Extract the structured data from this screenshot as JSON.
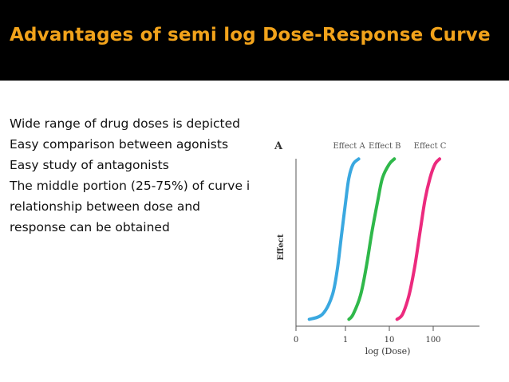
{
  "slide": {
    "title": "Advantages of semi log Dose-Response Curve",
    "bullets": [
      "Wide range of drug doses is depicted",
      "Easy comparison between agonists",
      "Easy study of antagonists",
      "The middle portion (25-75%) of curve i",
      "relationship between dose and",
      "response can be obtained"
    ],
    "colors": {
      "title_bar": "#000000",
      "title_text": "#f2a31b"
    }
  },
  "chart_data": {
    "type": "line",
    "panel_label": "A",
    "xlabel": "log (Dose)",
    "ylabel": "Effect",
    "x_scale": "log",
    "x_ticks": [
      {
        "label": "0",
        "pos": 0
      },
      {
        "label": "1",
        "pos": 1
      },
      {
        "label": "10",
        "pos": 10
      },
      {
        "label": "100",
        "pos": 100
      }
    ],
    "grid": false,
    "series": [
      {
        "name": "Effect A",
        "color": "#3aa8e0",
        "points": [
          [
            0.15,
            0.04
          ],
          [
            0.3,
            0.07
          ],
          [
            0.5,
            0.18
          ],
          [
            0.65,
            0.33
          ],
          [
            0.8,
            0.52
          ],
          [
            1.0,
            0.72
          ],
          [
            1.2,
            0.87
          ],
          [
            1.5,
            0.95
          ],
          [
            2.0,
            0.98
          ]
        ]
      },
      {
        "name": "Effect B",
        "color": "#2fb84a",
        "points": [
          [
            1.2,
            0.04
          ],
          [
            1.5,
            0.07
          ],
          [
            2.2,
            0.18
          ],
          [
            3.0,
            0.35
          ],
          [
            4.0,
            0.55
          ],
          [
            5.5,
            0.74
          ],
          [
            7.0,
            0.87
          ],
          [
            10.0,
            0.95
          ],
          [
            13.0,
            0.98
          ]
        ]
      },
      {
        "name": "Effect C",
        "color": "#ec2a7e",
        "points": [
          [
            15,
            0.04
          ],
          [
            20,
            0.07
          ],
          [
            28,
            0.18
          ],
          [
            38,
            0.35
          ],
          [
            50,
            0.55
          ],
          [
            65,
            0.74
          ],
          [
            85,
            0.87
          ],
          [
            110,
            0.95
          ],
          [
            140,
            0.98
          ]
        ]
      }
    ]
  }
}
